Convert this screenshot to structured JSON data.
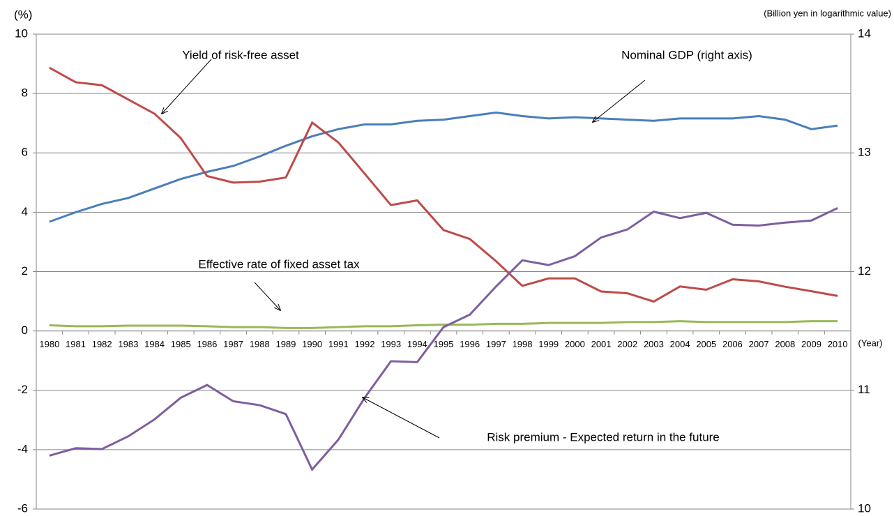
{
  "chart_data": {
    "type": "line",
    "y_axis_label": "(%)",
    "y2_axis_label": "(Billion yen in logarithmic value)",
    "x_axis_label": "(Year)",
    "categories": [
      "1980",
      "1981",
      "1982",
      "1983",
      "1984",
      "1985",
      "1986",
      "1987",
      "1988",
      "1989",
      "1990",
      "1991",
      "1992",
      "1993",
      "1994",
      "1995",
      "1996",
      "1997",
      "1998",
      "1999",
      "2000",
      "2001",
      "2002",
      "2003",
      "2004",
      "2005",
      "2006",
      "2007",
      "2008",
      "2009",
      "2010"
    ],
    "series": [
      {
        "name": "Nominal GDP",
        "color": "#4a7ebb",
        "axis": "y2",
        "values": [
          12.42,
          12.5,
          12.57,
          12.62,
          12.7,
          12.78,
          12.84,
          12.89,
          12.97,
          13.06,
          13.14,
          13.2,
          13.24,
          13.24,
          13.27,
          13.28,
          13.31,
          13.34,
          13.31,
          13.29,
          13.3,
          13.29,
          13.28,
          13.27,
          13.29,
          13.29,
          13.29,
          13.31,
          13.28,
          13.2,
          13.23
        ]
      },
      {
        "name": "Yield of risk-free asset",
        "color": "#be4b48",
        "values": [
          8.87,
          8.38,
          8.28,
          7.8,
          7.32,
          6.5,
          5.22,
          5.0,
          5.03,
          5.17,
          7.02,
          6.35,
          5.3,
          4.24,
          4.4,
          3.4,
          3.1,
          2.35,
          1.52,
          1.77,
          1.77,
          1.33,
          1.27,
          0.99,
          1.5,
          1.39,
          1.74,
          1.67,
          1.49,
          1.34,
          1.18
        ]
      },
      {
        "name": "Effective rate of fixed asset tax",
        "color": "#98b954",
        "values": [
          0.19,
          0.16,
          0.16,
          0.18,
          0.18,
          0.18,
          0.16,
          0.13,
          0.13,
          0.1,
          0.1,
          0.13,
          0.16,
          0.16,
          0.19,
          0.21,
          0.21,
          0.24,
          0.24,
          0.27,
          0.27,
          0.27,
          0.3,
          0.3,
          0.33,
          0.3,
          0.3,
          0.3,
          0.3,
          0.33,
          0.33
        ]
      },
      {
        "name": "Risk premium",
        "color": "#7d5fa0",
        "values": [
          -4.2,
          -3.95,
          -3.98,
          -3.55,
          -2.98,
          -2.25,
          -1.82,
          -2.37,
          -2.5,
          -2.8,
          -4.67,
          -3.66,
          -2.25,
          -1.02,
          -1.05,
          0.13,
          0.55,
          1.5,
          2.38,
          2.22,
          2.52,
          3.15,
          3.42,
          4.02,
          3.8,
          3.98,
          3.58,
          3.55,
          3.65,
          3.72,
          4.14
        ]
      }
    ],
    "annotations": [
      "Yield of risk-free asset",
      "Nominal GDP (right axis)",
      "Effective rate of fixed asset tax",
      "Risk premium - Expected return in the future"
    ],
    "ylim": [
      -6,
      10
    ],
    "yticks": [
      -6,
      -4,
      -2,
      0,
      2,
      4,
      6,
      8,
      10
    ],
    "y2lim": [
      10,
      14
    ],
    "y2ticks": [
      10,
      11,
      12,
      13,
      14
    ],
    "grid": true
  }
}
